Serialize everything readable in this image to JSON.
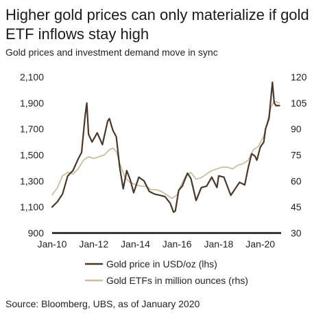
{
  "title": "Higher gold prices can only materialize if gold ETF inflows stay high",
  "subtitle": "Gold prices and investment demand move in sync",
  "source": "Source: Bloomberg, UBS, as of January 2020",
  "chart_data": {
    "type": "line",
    "x_ticks": [
      "Jan-10",
      "Jan-12",
      "Jan-14",
      "Jan-16",
      "Jan-18",
      "Jan-20"
    ],
    "y_left": {
      "ticks": [
        "2,100",
        "1,900",
        "1,700",
        "1,500",
        "1,300",
        "1,100",
        "900"
      ],
      "range": [
        900,
        2100
      ]
    },
    "y_right": {
      "ticks": [
        "120",
        "105",
        "90",
        "75",
        "60",
        "45",
        "30"
      ],
      "range": [
        30,
        120
      ]
    },
    "grid": false,
    "legend_position": "bottom",
    "series": [
      {
        "name": "Gold price in USD/oz (lhs)",
        "axis": "left",
        "color": "#4a3728",
        "x": [
          "2010-01",
          "2010-04",
          "2010-07",
          "2010-10",
          "2011-01",
          "2011-04",
          "2011-06",
          "2011-08",
          "2011-09",
          "2011-10",
          "2011-12",
          "2012-03",
          "2012-06",
          "2012-09",
          "2012-10",
          "2012-12",
          "2013-02",
          "2013-04",
          "2013-06",
          "2013-08",
          "2013-10",
          "2013-12",
          "2014-03",
          "2014-06",
          "2014-09",
          "2014-12",
          "2015-03",
          "2015-06",
          "2015-09",
          "2015-11",
          "2015-12",
          "2016-02",
          "2016-04",
          "2016-07",
          "2016-09",
          "2016-12",
          "2017-03",
          "2017-06",
          "2017-09",
          "2017-12",
          "2018-01",
          "2018-04",
          "2018-08",
          "2018-10",
          "2019-01",
          "2019-04",
          "2019-06",
          "2019-08",
          "2019-09",
          "2019-10",
          "2019-11",
          "2020-01",
          "2020-03",
          "2020-04",
          "2020-06",
          "2020-08",
          "2020-09",
          "2020-10",
          "2020-12"
        ],
        "values": [
          1100,
          1140,
          1200,
          1340,
          1380,
          1470,
          1520,
          1800,
          1900,
          1660,
          1600,
          1670,
          1580,
          1760,
          1780,
          1690,
          1640,
          1400,
          1240,
          1380,
          1310,
          1210,
          1330,
          1300,
          1220,
          1200,
          1190,
          1180,
          1130,
          1060,
          1070,
          1230,
          1260,
          1360,
          1320,
          1150,
          1250,
          1260,
          1330,
          1250,
          1340,
          1330,
          1190,
          1230,
          1290,
          1270,
          1400,
          1510,
          1500,
          1490,
          1460,
          1560,
          1600,
          1700,
          1780,
          2060,
          1900,
          1880,
          1880
        ]
      },
      {
        "name": "Gold ETFs in million ounces (rhs)",
        "axis": "right",
        "color": "#c9bda0",
        "x": [
          "2010-01",
          "2010-04",
          "2010-07",
          "2010-10",
          "2011-01",
          "2011-04",
          "2011-07",
          "2011-10",
          "2012-01",
          "2012-04",
          "2012-07",
          "2012-10",
          "2012-12",
          "2013-02",
          "2013-04",
          "2013-07",
          "2013-10",
          "2014-01",
          "2014-04",
          "2014-07",
          "2014-10",
          "2015-01",
          "2015-04",
          "2015-07",
          "2015-10",
          "2016-01",
          "2016-03",
          "2016-06",
          "2016-09",
          "2016-12",
          "2017-03",
          "2017-06",
          "2017-09",
          "2017-12",
          "2018-03",
          "2018-06",
          "2018-09",
          "2018-12",
          "2019-03",
          "2019-06",
          "2019-09",
          "2019-12",
          "2020-01",
          "2020-03",
          "2020-05",
          "2020-07",
          "2020-09",
          "2020-12"
        ],
        "values": [
          52,
          56,
          63,
          65,
          64,
          67,
          72,
          74,
          73,
          74,
          75,
          78,
          79,
          77,
          70,
          62,
          59,
          58,
          57,
          57,
          55,
          55,
          54,
          52,
          50,
          52,
          57,
          63,
          65,
          61,
          62,
          64,
          66,
          67,
          68,
          68,
          67,
          69,
          70,
          72,
          78,
          80,
          82,
          86,
          94,
          102,
          106,
          105
        ]
      }
    ]
  }
}
